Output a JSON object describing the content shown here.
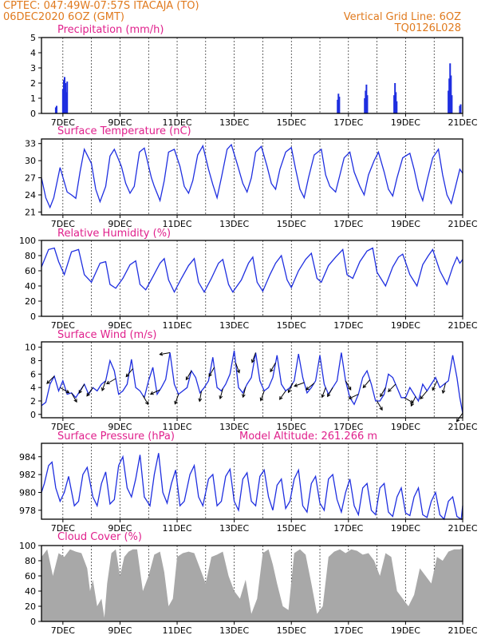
{
  "header": {
    "station": "CPTEC:   047:49W-07:57S   ITACAJA (TO)",
    "run": "06DEC2020  6OZ (GMT)",
    "grid_note": "Vertical Grid Line: 6OZ",
    "code": "TQ0126L028"
  },
  "colors": {
    "header": "#e07a1e",
    "title": "#e0208c",
    "series": "#1f2fe0",
    "cloud": "#a8a8a8"
  },
  "x_axis": {
    "labels": [
      "7DEC",
      "9DEC",
      "11DEC",
      "13DEC",
      "15DEC",
      "17DEC",
      "19DEC",
      "21DEC"
    ],
    "label_days": [
      7,
      9,
      11,
      13,
      15,
      17,
      19,
      21
    ],
    "start_day": 6.25,
    "end_day": 21.0
  },
  "chart_data": [
    {
      "id": "precip",
      "type": "bar",
      "title": "Precipitation (mm/h)",
      "ylim": [
        0,
        5
      ],
      "yticks": [
        0,
        1,
        2,
        3,
        4,
        5
      ],
      "bars": [
        [
          6.75,
          0.4
        ],
        [
          6.78,
          0.5
        ],
        [
          7.0,
          1.6
        ],
        [
          7.03,
          2.2
        ],
        [
          7.06,
          2.4
        ],
        [
          7.09,
          2.0
        ],
        [
          7.12,
          1.4
        ],
        [
          7.15,
          2.1
        ],
        [
          16.62,
          0.9
        ],
        [
          16.65,
          1.3
        ],
        [
          16.68,
          1.1
        ],
        [
          17.57,
          1.0
        ],
        [
          17.6,
          1.5
        ],
        [
          17.63,
          1.9
        ],
        [
          17.66,
          1.2
        ],
        [
          18.6,
          1.2
        ],
        [
          18.63,
          2.0
        ],
        [
          18.66,
          1.4
        ],
        [
          18.69,
          0.8
        ],
        [
          20.5,
          1.5
        ],
        [
          20.53,
          2.3
        ],
        [
          20.56,
          3.3
        ],
        [
          20.59,
          2.5
        ],
        [
          20.62,
          1.2
        ],
        [
          20.9,
          0.5
        ],
        [
          20.93,
          0.6
        ]
      ]
    },
    {
      "id": "temp",
      "type": "line",
      "title": "Surface Temperature (nC)",
      "ylim": [
        20.5,
        33.8
      ],
      "yticks": [
        21,
        24,
        27,
        30,
        33
      ],
      "x": [
        6.25,
        6.4,
        6.55,
        6.68,
        6.9,
        7.15,
        7.3,
        7.45,
        7.6,
        7.75,
        8.0,
        8.15,
        8.3,
        8.5,
        8.65,
        8.8,
        9.05,
        9.2,
        9.35,
        9.5,
        9.68,
        9.85,
        10.1,
        10.2,
        10.4,
        10.55,
        10.7,
        10.9,
        11.1,
        11.25,
        11.4,
        11.55,
        11.72,
        11.9,
        12.1,
        12.25,
        12.4,
        12.55,
        12.75,
        12.9,
        13.1,
        13.3,
        13.45,
        13.6,
        13.75,
        13.95,
        14.15,
        14.3,
        14.45,
        14.6,
        14.8,
        15.0,
        15.15,
        15.3,
        15.45,
        15.6,
        15.8,
        16.05,
        16.2,
        16.35,
        16.55,
        16.7,
        16.85,
        17.05,
        17.2,
        17.4,
        17.55,
        17.7,
        17.9,
        18.05,
        18.25,
        18.4,
        18.55,
        18.7,
        18.9,
        19.15,
        19.3,
        19.45,
        19.6,
        19.75,
        19.95,
        20.15,
        20.3,
        20.45,
        20.6,
        20.75,
        20.9,
        21.0
      ],
      "y": [
        27.0,
        23.5,
        21.8,
        23.5,
        28.8,
        24.5,
        24.0,
        23.4,
        28.0,
        32.0,
        29.5,
        25.0,
        22.8,
        25.5,
        30.8,
        32.0,
        29.0,
        26.0,
        24.3,
        25.5,
        31.5,
        32.2,
        27.0,
        25.5,
        23.0,
        26.5,
        31.5,
        32.0,
        29.0,
        25.5,
        24.3,
        26.5,
        31.0,
        32.6,
        28.5,
        25.8,
        23.5,
        27.0,
        32.0,
        32.8,
        29.5,
        26.0,
        24.5,
        27.0,
        31.5,
        32.5,
        29.0,
        26.0,
        25.0,
        28.5,
        31.5,
        32.3,
        28.5,
        25.0,
        23.5,
        27.0,
        31.0,
        32.0,
        27.5,
        25.5,
        24.5,
        27.5,
        30.5,
        31.5,
        28.0,
        25.5,
        24.0,
        27.5,
        30.0,
        31.5,
        28.0,
        25.0,
        23.8,
        27.0,
        30.5,
        31.3,
        28.5,
        25.0,
        23.0,
        26.5,
        30.5,
        32.0,
        27.5,
        24.0,
        22.5,
        25.5,
        28.5,
        27.8
      ]
    },
    {
      "id": "rh",
      "type": "line",
      "title": "Relative Humidity (%)",
      "ylim": [
        0,
        100
      ],
      "yticks": [
        0,
        20,
        40,
        60,
        80,
        100
      ],
      "x": [
        6.25,
        6.5,
        6.7,
        6.85,
        7.05,
        7.3,
        7.55,
        7.75,
        8.0,
        8.3,
        8.5,
        8.65,
        8.85,
        9.1,
        9.35,
        9.55,
        9.7,
        9.9,
        10.15,
        10.4,
        10.55,
        10.7,
        10.9,
        11.15,
        11.4,
        11.6,
        11.75,
        11.95,
        12.2,
        12.45,
        12.6,
        12.8,
        12.95,
        13.25,
        13.5,
        13.65,
        13.8,
        14.0,
        14.25,
        14.45,
        14.65,
        14.85,
        15.0,
        15.25,
        15.5,
        15.7,
        15.9,
        16.05,
        16.3,
        16.55,
        16.8,
        16.95,
        17.15,
        17.4,
        17.65,
        17.85,
        18.0,
        18.3,
        18.55,
        18.75,
        18.9,
        19.15,
        19.4,
        19.6,
        19.8,
        19.95,
        20.2,
        20.45,
        20.65,
        20.8,
        20.9,
        21.0
      ],
      "y": [
        65,
        88,
        90,
        72,
        55,
        85,
        88,
        55,
        45,
        70,
        72,
        42,
        37,
        50,
        68,
        73,
        42,
        35,
        52,
        70,
        76,
        48,
        32,
        50,
        67,
        76,
        45,
        32,
        50,
        70,
        75,
        42,
        32,
        48,
        70,
        78,
        45,
        33,
        55,
        70,
        80,
        48,
        38,
        60,
        75,
        83,
        50,
        45,
        67,
        78,
        88,
        55,
        50,
        72,
        86,
        90,
        58,
        40,
        65,
        78,
        82,
        55,
        40,
        68,
        80,
        88,
        60,
        42,
        65,
        78,
        70,
        75
      ]
    },
    {
      "id": "wind",
      "type": "line",
      "title": "Surface Wind (m/s)",
      "ylim": [
        -0.5,
        10.8
      ],
      "yticks": [
        0,
        2,
        4,
        6,
        8,
        10
      ],
      "x": [
        6.25,
        6.4,
        6.55,
        6.7,
        6.85,
        7.0,
        7.15,
        7.3,
        7.45,
        7.6,
        7.75,
        7.9,
        8.05,
        8.2,
        8.35,
        8.5,
        8.65,
        8.8,
        8.95,
        9.1,
        9.25,
        9.4,
        9.55,
        9.7,
        9.85,
        10.0,
        10.15,
        10.3,
        10.45,
        10.6,
        10.75,
        10.9,
        11.05,
        11.2,
        11.35,
        11.5,
        11.65,
        11.8,
        11.95,
        12.1,
        12.25,
        12.4,
        12.55,
        12.7,
        12.85,
        13.0,
        13.15,
        13.3,
        13.45,
        13.6,
        13.75,
        13.9,
        14.05,
        14.2,
        14.35,
        14.5,
        14.65,
        14.8,
        14.95,
        15.1,
        15.25,
        15.4,
        15.55,
        15.7,
        15.85,
        16.0,
        16.15,
        16.3,
        16.45,
        16.6,
        16.75,
        16.9,
        17.05,
        17.2,
        17.35,
        17.5,
        17.65,
        17.8,
        17.95,
        18.1,
        18.25,
        18.4,
        18.55,
        18.7,
        18.85,
        19.0,
        19.15,
        19.3,
        19.45,
        19.6,
        19.75,
        19.9,
        20.05,
        20.2,
        20.35,
        20.5,
        20.65,
        20.8,
        20.9,
        21.0
      ],
      "y": [
        1.3,
        1.8,
        4.5,
        5.7,
        3.5,
        5.0,
        3.0,
        3.2,
        2.5,
        3.5,
        4.5,
        3.0,
        4.0,
        3.5,
        4.5,
        5.0,
        8.0,
        6.5,
        3.0,
        3.5,
        4.5,
        8.2,
        4.0,
        3.5,
        2.5,
        5.0,
        7.0,
        3.0,
        4.0,
        5.2,
        9.2,
        4.5,
        3.0,
        3.5,
        4.0,
        6.5,
        5.5,
        3.2,
        4.0,
        5.0,
        8.5,
        4.0,
        3.5,
        4.5,
        6.0,
        9.5,
        4.0,
        3.2,
        4.5,
        5.5,
        9.2,
        5.0,
        3.5,
        4.0,
        5.5,
        8.8,
        4.5,
        3.5,
        4.0,
        5.0,
        9.0,
        5.5,
        3.2,
        4.0,
        5.0,
        8.8,
        4.5,
        3.0,
        4.0,
        5.0,
        9.2,
        5.0,
        2.5,
        1.5,
        3.0,
        5.5,
        6.5,
        4.5,
        2.0,
        2.0,
        3.0,
        6.0,
        5.5,
        4.0,
        2.5,
        2.5,
        4.0,
        3.0,
        2.0,
        4.5,
        3.5,
        4.5,
        5.5,
        4.0,
        4.5,
        5.0,
        8.8,
        5.5,
        2.5,
        0.2
      ],
      "arrows": [
        [
          6.7,
          225
        ],
        [
          6.9,
          330
        ],
        [
          7.3,
          300
        ],
        [
          7.75,
          240
        ],
        [
          8.05,
          235
        ],
        [
          8.5,
          250
        ],
        [
          8.85,
          210
        ],
        [
          9.45,
          230
        ],
        [
          9.8,
          300
        ],
        [
          10.4,
          205
        ],
        [
          10.75,
          190
        ],
        [
          11.05,
          250
        ],
        [
          11.5,
          240
        ],
        [
          11.85,
          260
        ],
        [
          12.3,
          240
        ],
        [
          12.6,
          255
        ],
        [
          13.05,
          290
        ],
        [
          13.4,
          255
        ],
        [
          13.75,
          250
        ],
        [
          14.05,
          250
        ],
        [
          14.45,
          240
        ],
        [
          14.8,
          235
        ],
        [
          15.05,
          245
        ],
        [
          15.45,
          200
        ],
        [
          15.8,
          220
        ],
        [
          16.2,
          250
        ],
        [
          16.45,
          240
        ],
        [
          16.9,
          300
        ],
        [
          17.35,
          205
        ],
        [
          17.75,
          230
        ],
        [
          18.0,
          300
        ],
        [
          18.3,
          240
        ],
        [
          18.65,
          225
        ],
        [
          18.95,
          330
        ],
        [
          19.35,
          245
        ],
        [
          19.75,
          230
        ],
        [
          20.1,
          245
        ],
        [
          20.4,
          255
        ],
        [
          21.0,
          235
        ]
      ]
    },
    {
      "id": "pressure",
      "type": "line",
      "title": "Surface Pressure (hPa)",
      "annotation": "Model Altitude: 261.266 m",
      "ylim": [
        977.0,
        985.5
      ],
      "yticks": [
        978,
        980,
        982,
        984
      ],
      "x": [
        6.25,
        6.35,
        6.5,
        6.62,
        6.75,
        6.9,
        7.05,
        7.2,
        7.4,
        7.55,
        7.7,
        7.85,
        8.05,
        8.2,
        8.35,
        8.5,
        8.65,
        8.8,
        8.95,
        9.1,
        9.25,
        9.4,
        9.55,
        9.7,
        9.85,
        10.05,
        10.2,
        10.35,
        10.5,
        10.65,
        10.8,
        10.95,
        11.1,
        11.25,
        11.45,
        11.6,
        11.75,
        11.9,
        12.1,
        12.25,
        12.4,
        12.55,
        12.7,
        12.85,
        13.0,
        13.15,
        13.3,
        13.45,
        13.6,
        13.75,
        13.9,
        14.05,
        14.2,
        14.35,
        14.5,
        14.65,
        14.8,
        14.95,
        15.1,
        15.25,
        15.4,
        15.55,
        15.7,
        15.85,
        16.0,
        16.15,
        16.3,
        16.45,
        16.6,
        16.75,
        16.9,
        17.05,
        17.2,
        17.35,
        17.5,
        17.65,
        17.8,
        17.95,
        18.1,
        18.25,
        18.4,
        18.55,
        18.7,
        18.85,
        19.0,
        19.15,
        19.3,
        19.45,
        19.6,
        19.75,
        19.9,
        20.05,
        20.2,
        20.35,
        20.5,
        20.65,
        20.8,
        20.95,
        21.0
      ],
      "y": [
        980.0,
        981.0,
        983.0,
        983.4,
        980.5,
        979.0,
        980.0,
        981.8,
        978.5,
        979.0,
        982.0,
        982.8,
        979.5,
        978.5,
        981.0,
        982.3,
        978.7,
        979.2,
        983.0,
        984.0,
        980.5,
        979.5,
        981.5,
        984.2,
        979.5,
        978.5,
        982.0,
        984.4,
        980.0,
        978.8,
        981.0,
        982.5,
        978.5,
        979.0,
        982.0,
        983.0,
        979.5,
        978.5,
        981.5,
        982.0,
        978.5,
        979.0,
        981.8,
        982.6,
        979.0,
        978.0,
        981.5,
        982.2,
        979.0,
        978.5,
        981.8,
        982.5,
        979.5,
        978.0,
        980.8,
        981.5,
        978.2,
        979.0,
        981.5,
        982.5,
        978.5,
        977.8,
        981.0,
        981.8,
        978.8,
        978.0,
        981.5,
        982.0,
        979.2,
        977.8,
        980.0,
        981.5,
        978.5,
        977.5,
        980.5,
        981.0,
        978.0,
        977.5,
        980.5,
        981.0,
        977.8,
        977.3,
        979.5,
        980.5,
        977.7,
        977.4,
        979.5,
        980.5,
        977.5,
        977.2,
        979.0,
        980.0,
        977.5,
        977.0,
        979.0,
        979.5,
        977.3,
        977.0,
        978.5
      ]
    },
    {
      "id": "cloud",
      "type": "area",
      "title": "Cloud Cover (%)",
      "ylim": [
        0,
        100
      ],
      "yticks": [
        0,
        20,
        40,
        60,
        80,
        100
      ],
      "x": [
        6.25,
        6.45,
        6.65,
        6.85,
        7.05,
        7.25,
        7.45,
        7.65,
        7.85,
        7.95,
        8.05,
        8.2,
        8.35,
        8.45,
        8.55,
        8.7,
        8.85,
        9.0,
        9.15,
        9.3,
        9.45,
        9.6,
        9.8,
        10.0,
        10.2,
        10.4,
        10.55,
        10.7,
        10.85,
        11.0,
        11.2,
        11.4,
        11.6,
        11.8,
        12.0,
        12.2,
        12.4,
        12.6,
        12.8,
        13.0,
        13.2,
        13.4,
        13.6,
        13.8,
        14.0,
        14.2,
        14.35,
        14.5,
        14.7,
        14.9,
        15.1,
        15.3,
        15.5,
        15.7,
        15.9,
        16.1,
        16.3,
        16.5,
        16.7,
        16.9,
        17.1,
        17.3,
        17.5,
        17.7,
        17.9,
        18.1,
        18.3,
        18.5,
        18.7,
        18.9,
        19.1,
        19.3,
        19.5,
        19.7,
        19.9,
        20.1,
        20.3,
        20.5,
        20.7,
        20.9,
        21.0
      ],
      "y": [
        85,
        95,
        60,
        90,
        85,
        95,
        92,
        90,
        70,
        40,
        55,
        20,
        30,
        5,
        50,
        90,
        95,
        60,
        85,
        92,
        95,
        95,
        40,
        60,
        88,
        92,
        65,
        20,
        30,
        85,
        90,
        92,
        90,
        70,
        50,
        85,
        88,
        92,
        60,
        40,
        30,
        55,
        10,
        30,
        90,
        95,
        75,
        50,
        20,
        15,
        90,
        95,
        88,
        50,
        10,
        20,
        85,
        92,
        95,
        90,
        95,
        93,
        88,
        90,
        80,
        60,
        90,
        85,
        40,
        30,
        20,
        35,
        70,
        60,
        50,
        85,
        80,
        92,
        95,
        95,
        97
      ]
    }
  ]
}
